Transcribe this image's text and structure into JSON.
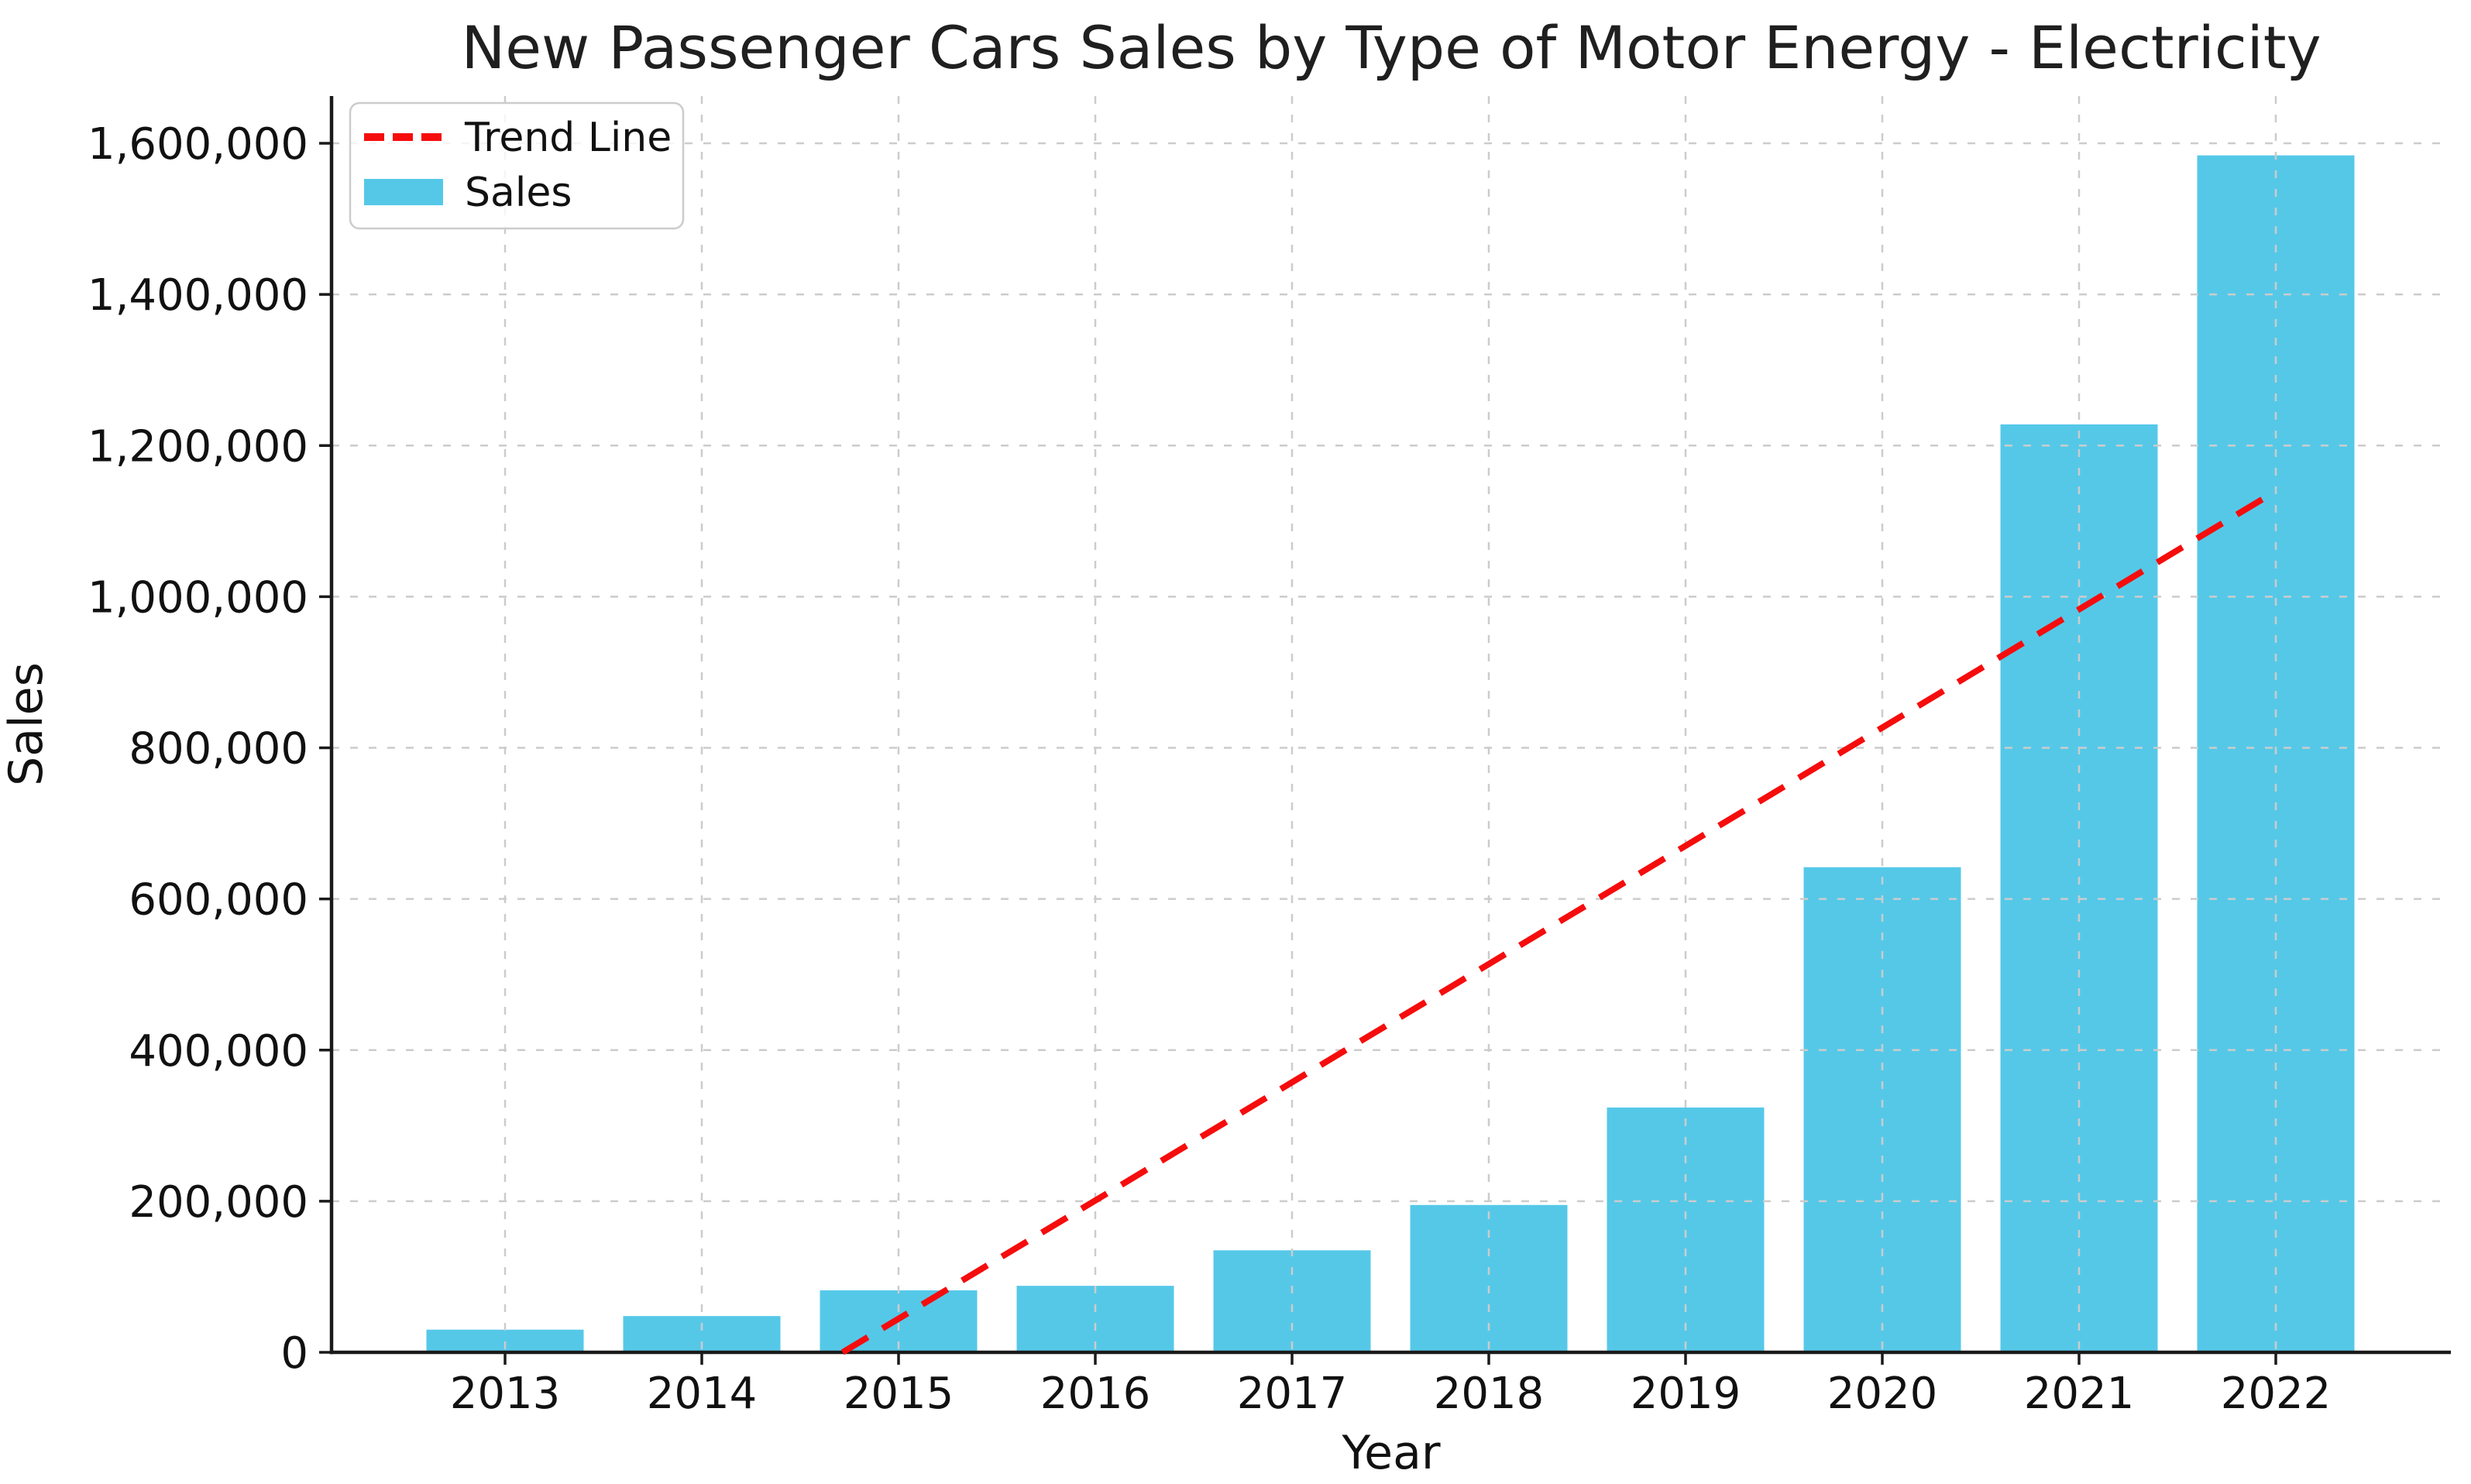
{
  "window": {
    "title": "New Passenger Cars Sales by Type of Motor Energy - Electricity"
  },
  "chart_data": {
    "type": "bar",
    "title": "New Passenger Cars Sales by Type of Motor Energy - Electricity",
    "xlabel": "Year",
    "ylabel": "Sales",
    "categories": [
      "2013",
      "2014",
      "2015",
      "2016",
      "2017",
      "2018",
      "2019",
      "2020",
      "2021",
      "2022"
    ],
    "series": [
      {
        "name": "Sales",
        "color": "#55c8e8",
        "values": [
          30000,
          48000,
          82000,
          88000,
          135000,
          195000,
          324000,
          642000,
          1228000,
          1584000
        ]
      }
    ],
    "trend_line": {
      "name": "Trend Line",
      "color": "#f50d0d",
      "style": "dashed",
      "fit": "linear-least-squares",
      "clipped_below_value": 0,
      "visible_start": {
        "year_fraction": 2014.72,
        "value": 0
      },
      "visible_end": {
        "year": 2022,
        "value": 1140000
      }
    },
    "yticks": [
      0,
      200000,
      400000,
      600000,
      800000,
      1000000,
      1200000,
      1400000,
      1600000
    ],
    "ytick_labels": [
      "0",
      "200,000",
      "400,000",
      "600,000",
      "800,000",
      "1,000,000",
      "1,200,000",
      "1,400,000",
      "1,600,000"
    ],
    "ylim": [
      0,
      1663000
    ],
    "grid": {
      "visible": true,
      "style": "dashed",
      "color": "#cccccc",
      "drawn_over_bars": true
    },
    "legend": {
      "position": "upper-left",
      "background": "rgba(255,255,255,0.8)",
      "border_color": "#cccccc",
      "entries": [
        {
          "label": "Trend Line",
          "swatch": "red-dashed-line"
        },
        {
          "label": "Sales",
          "swatch": "skyblue-patch"
        }
      ]
    },
    "colors": {
      "bar": "#55c8e8",
      "trend": "#f50d0d",
      "grid": "#cccccc",
      "spine": "#1a1a1a",
      "text": "#111111",
      "title_text": "#1f1f1f",
      "background": "#ffffff"
    }
  }
}
